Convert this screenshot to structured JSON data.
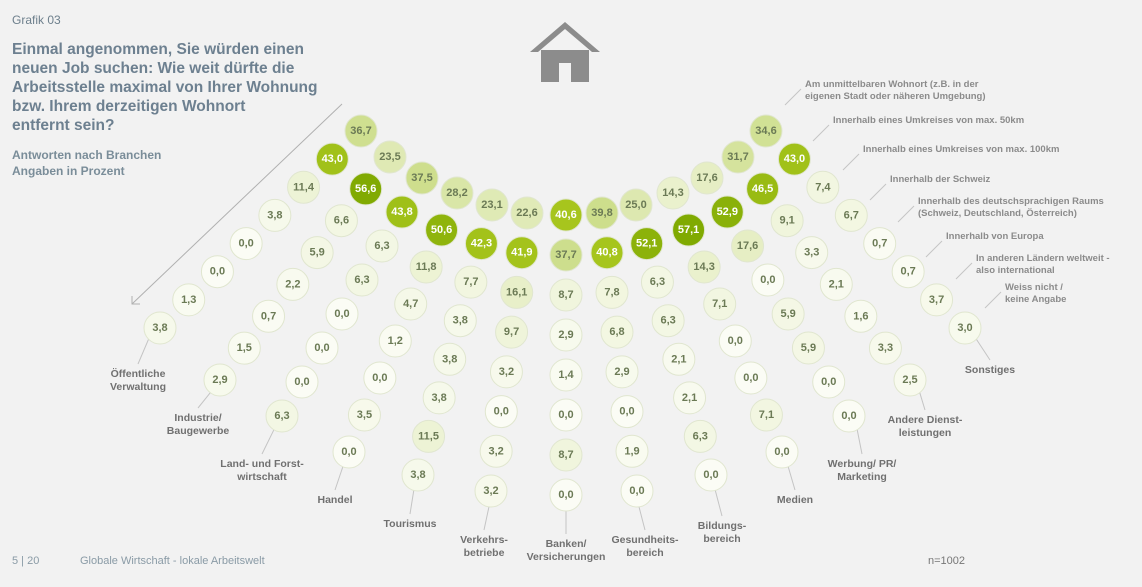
{
  "grafik": "Grafik 03",
  "chart_data": {
    "type": "dot-matrix",
    "title": "Einmal angenommen, Sie würden einen\nneuen Job suchen: Wie weit dürfte die\nArbeitsstelle maximal von Ihrer Wohnung\nbzw. Ihrem derzeitigen Wohnort\nentfernt sein?",
    "subtitle": "Antworten nach Branchen\nAngaben in Prozent",
    "categories": [
      "Öffentliche\nVerwaltung",
      "Industrie/\nBaugewerbe",
      "Land- und Forst-\nwirtschaft",
      "Handel",
      "Tourismus",
      "Verkehrs-\nbetriebe",
      "Banken/\nVersicherungen",
      "Gesundheits-\nbereich",
      "Bildungs-\nbereich",
      "Medien",
      "Werbung/ PR/\nMarketing",
      "Andere Dienst-\nleistungen",
      "Sonstiges"
    ],
    "series": [
      {
        "name": "Am unmittelbaren Wohnort (z.B. in der\neigenen Stadt oder näheren Umgebung)",
        "values": [
          36.7,
          23.5,
          37.5,
          28.2,
          23.1,
          22.6,
          40.6,
          39.8,
          25.0,
          14.3,
          17.6,
          31.7,
          34.6
        ],
        "value_labels": [
          "36,7",
          "23,5",
          "37,5",
          "28,2",
          "23,1",
          "22,6",
          "40,6",
          "39,8",
          "25,0",
          "14,3",
          "17,6",
          "31,7",
          "34,6"
        ]
      },
      {
        "name": "Innerhalb eines Umkreises von max. 50km",
        "values": [
          43.0,
          56.6,
          43.8,
          50.6,
          42.3,
          41.9,
          37.7,
          40.8,
          52.1,
          57.1,
          52.9,
          46.5,
          43.0
        ],
        "value_labels": [
          "43,0",
          "56,6",
          "43,8",
          "50,6",
          "42,3",
          "41,9",
          "37,7",
          "40,8",
          "52,1",
          "57,1",
          "52,9",
          "46,5",
          "43,0"
        ]
      },
      {
        "name": "Innerhalb eines Umkreises von max. 100km",
        "values": [
          11.4,
          6.6,
          6.3,
          11.8,
          7.7,
          16.1,
          8.7,
          7.8,
          6.3,
          14.3,
          17.6,
          9.1,
          7.4
        ],
        "value_labels": [
          "11,4",
          "6,6",
          "6,3",
          "11,8",
          "7,7",
          "16,1",
          "8,7",
          "7,8",
          "6,3",
          "14,3",
          "17,6",
          "9,1",
          "7,4"
        ]
      },
      {
        "name": "Innerhalb der Schweiz",
        "values": [
          3.8,
          5.9,
          6.3,
          4.7,
          3.8,
          9.7,
          2.9,
          6.8,
          6.3,
          7.1,
          0.0,
          3.3,
          6.7
        ],
        "value_labels": [
          "3,8",
          "5,9",
          "6,3",
          "4,7",
          "3,8",
          "9,7",
          "2,9",
          "6,8",
          "6,3",
          "7,1",
          "0,0",
          "3,3",
          "6,7"
        ]
      },
      {
        "name": "Innerhalb des deutschsprachigen Raums\n(Schweiz, Deutschland, Österreich)",
        "values": [
          0.0,
          2.2,
          0.0,
          1.2,
          3.8,
          3.2,
          1.4,
          2.9,
          2.1,
          0.0,
          5.9,
          2.1,
          0.7
        ],
        "value_labels": [
          "0,0",
          "2,2",
          "0,0",
          "1,2",
          "3,8",
          "3,2",
          "1,4",
          "2,9",
          "2,1",
          "0,0",
          "5,9",
          "2,1",
          "0,7"
        ]
      },
      {
        "name": "Innerhalb von Europa",
        "values": [
          0.0,
          0.7,
          0.0,
          0.0,
          3.8,
          0.0,
          0.0,
          0.0,
          2.1,
          0.0,
          5.9,
          1.6,
          0.7
        ],
        "value_labels": [
          "0,0",
          "0,7",
          "0,0",
          "0,0",
          "3,8",
          "0,0",
          "0,0",
          "0,0",
          "2,1",
          "0,0",
          "5,9",
          "1,6",
          "0,7"
        ]
      },
      {
        "name": "In anderen Ländern weltweit -\nalso international",
        "values": [
          1.3,
          1.5,
          0.0,
          3.5,
          11.5,
          3.2,
          8.7,
          1.9,
          6.3,
          7.1,
          0.0,
          3.3,
          3.7
        ],
        "value_labels": [
          "1,3",
          "1,5",
          "0,0",
          "3,5",
          "11,5",
          "3,2",
          "8,7",
          "1,9",
          "6,3",
          "7,1",
          "0,0",
          "3,3",
          "3,7"
        ]
      },
      {
        "name": "Weiss nicht /\nkeine Angabe",
        "values": [
          3.8,
          2.9,
          6.3,
          0.0,
          3.8,
          3.2,
          0.0,
          0.0,
          0.0,
          0.0,
          0.0,
          2.5,
          3.0
        ],
        "value_labels": [
          "3,8",
          "2,9",
          "6,3",
          "0,0",
          "3,8",
          "3,2",
          "0,0",
          "0,0",
          "0,0",
          "0,0",
          "0,0",
          "2,5",
          "3,0"
        ]
      }
    ],
    "note": "n=1002"
  },
  "footer": {
    "page": "5 | 20",
    "text": "Globale Wirtschaft - lokale Arbeitswelt"
  }
}
